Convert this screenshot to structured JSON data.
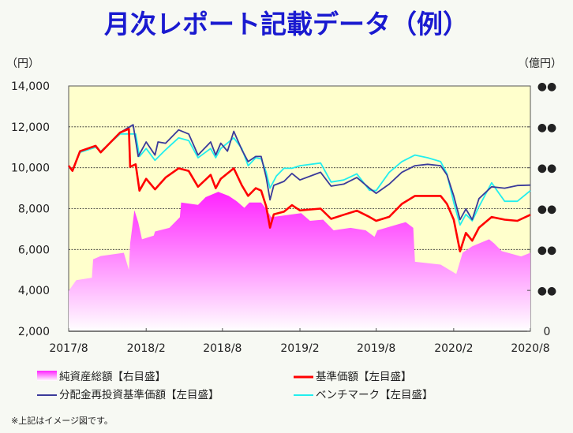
{
  "title": "月次レポート記載データ（例）",
  "footnote": "※上記はイメージ図です。",
  "colors": {
    "title": "#1a1ad0",
    "plot_bg": "#ffffcc",
    "net_assets_top": "#ff22ff",
    "nav": "#ff0000",
    "reinvested": "#3a3a9a",
    "benchmark": "#22eeee"
  },
  "chart_data": {
    "type": "line",
    "title": "月次レポート記載データ（例）",
    "left_axis": {
      "unit": "（円）",
      "range": [
        2000,
        14000
      ],
      "ticks": [
        "2,000",
        "4,000",
        "6,000",
        "8,000",
        "10,000",
        "12,000",
        "14,000"
      ],
      "tick_values": [
        2000,
        4000,
        6000,
        8000,
        10000,
        12000,
        14000
      ]
    },
    "right_axis": {
      "unit": "（億円）",
      "range": [
        0,
        6
      ],
      "ticks": [
        "0",
        "●●",
        "●●",
        "●●",
        "●●",
        "●●",
        "●●"
      ]
    },
    "x_axis": {
      "range": [
        "2017-08-01",
        "2020-08-01"
      ],
      "ticks": [
        "2017/8",
        "2018/2",
        "2018/8",
        "2019/2",
        "2019/8",
        "2020/2",
        "2020/8"
      ],
      "tick_dates": [
        "2017-08-01",
        "2018-02-01",
        "2018-08-01",
        "2019-02-01",
        "2019-08-01",
        "2020-02-01",
        "2020-08-01"
      ]
    },
    "grid": "horizontal dotted",
    "legend_position": "bottom",
    "series": [
      {
        "name": "純資産総額【右目盛】",
        "type": "area",
        "axis": "right",
        "color": "#ff22ff",
        "points": [
          [
            "2017-08-01",
            0.99
          ],
          [
            "2017-08-19",
            1.25
          ],
          [
            "2017-09-25",
            1.31
          ],
          [
            "2017-09-28",
            1.76
          ],
          [
            "2017-10-16",
            1.84
          ],
          [
            "2017-12-10",
            1.92
          ],
          [
            "2017-12-22",
            1.5
          ],
          [
            "2017-12-25",
            2.15
          ],
          [
            "2018-01-04",
            2.96
          ],
          [
            "2018-01-13",
            2.67
          ],
          [
            "2018-01-22",
            2.25
          ],
          [
            "2018-02-19",
            2.34
          ],
          [
            "2018-02-22",
            2.44
          ],
          [
            "2018-03-28",
            2.53
          ],
          [
            "2018-04-22",
            2.79
          ],
          [
            "2018-04-25",
            3.15
          ],
          [
            "2018-06-04",
            3.09
          ],
          [
            "2018-06-22",
            3.28
          ],
          [
            "2018-07-22",
            3.41
          ],
          [
            "2018-08-16",
            3.31
          ],
          [
            "2018-09-04",
            3.18
          ],
          [
            "2018-09-22",
            3.02
          ],
          [
            "2018-10-04",
            3.15
          ],
          [
            "2018-11-01",
            3.15
          ],
          [
            "2018-11-13",
            2.99
          ],
          [
            "2018-11-25",
            2.79
          ],
          [
            "2019-02-04",
            2.89
          ],
          [
            "2019-02-25",
            2.7
          ],
          [
            "2019-03-28",
            2.73
          ],
          [
            "2019-04-22",
            2.47
          ],
          [
            "2019-06-01",
            2.53
          ],
          [
            "2019-07-07",
            2.47
          ],
          [
            "2019-07-28",
            2.31
          ],
          [
            "2019-08-04",
            2.47
          ],
          [
            "2019-10-10",
            2.67
          ],
          [
            "2019-10-28",
            2.53
          ],
          [
            "2019-11-01",
            1.7
          ],
          [
            "2020-01-01",
            1.63
          ],
          [
            "2020-02-07",
            1.4
          ],
          [
            "2020-02-22",
            1.92
          ],
          [
            "2020-03-16",
            2.08
          ],
          [
            "2020-04-25",
            2.25
          ],
          [
            "2020-05-07",
            2.15
          ],
          [
            "2020-05-25",
            1.96
          ],
          [
            "2020-07-10",
            1.83
          ],
          [
            "2020-08-01",
            1.92
          ]
        ]
      },
      {
        "name": "基準価額【左目盛】",
        "type": "line",
        "axis": "left",
        "color": "#ff0000",
        "points": [
          [
            "2017-08-01",
            10100
          ],
          [
            "2017-08-10",
            9850
          ],
          [
            "2017-08-28",
            10810
          ],
          [
            "2017-10-04",
            11070
          ],
          [
            "2017-10-16",
            10750
          ],
          [
            "2017-12-01",
            11720
          ],
          [
            "2017-12-22",
            11900
          ],
          [
            "2017-12-25",
            10040
          ],
          [
            "2018-01-07",
            10170
          ],
          [
            "2018-01-16",
            8880
          ],
          [
            "2018-02-01",
            9460
          ],
          [
            "2018-02-22",
            8940
          ],
          [
            "2018-03-19",
            9520
          ],
          [
            "2018-04-19",
            9970
          ],
          [
            "2018-05-13",
            9840
          ],
          [
            "2018-06-04",
            9070
          ],
          [
            "2018-07-04",
            9650
          ],
          [
            "2018-07-16",
            9000
          ],
          [
            "2018-07-28",
            9460
          ],
          [
            "2018-08-28",
            9970
          ],
          [
            "2018-09-16",
            9140
          ],
          [
            "2018-10-01",
            8620
          ],
          [
            "2018-10-19",
            9000
          ],
          [
            "2018-11-01",
            8880
          ],
          [
            "2018-11-13",
            8100
          ],
          [
            "2018-11-22",
            7070
          ],
          [
            "2018-12-01",
            7720
          ],
          [
            "2018-12-25",
            7850
          ],
          [
            "2019-01-13",
            8170
          ],
          [
            "2019-02-01",
            7910
          ],
          [
            "2019-03-22",
            8000
          ],
          [
            "2019-04-16",
            7500
          ],
          [
            "2019-05-16",
            7700
          ],
          [
            "2019-06-16",
            7900
          ],
          [
            "2019-07-16",
            7590
          ],
          [
            "2019-08-01",
            7400
          ],
          [
            "2019-09-01",
            7600
          ],
          [
            "2019-10-01",
            8230
          ],
          [
            "2019-11-01",
            8620
          ],
          [
            "2019-12-01",
            8620
          ],
          [
            "2020-01-01",
            8620
          ],
          [
            "2020-01-16",
            8230
          ],
          [
            "2020-02-01",
            7460
          ],
          [
            "2020-02-16",
            5910
          ],
          [
            "2020-03-01",
            6810
          ],
          [
            "2020-03-16",
            6430
          ],
          [
            "2020-04-01",
            7070
          ],
          [
            "2020-05-01",
            7590
          ],
          [
            "2020-06-01",
            7460
          ],
          [
            "2020-07-01",
            7400
          ],
          [
            "2020-08-01",
            7700
          ]
        ]
      },
      {
        "name": "分配金再投資基準価額【左目盛】",
        "type": "line",
        "axis": "left",
        "color": "#3a3a9a",
        "points": [
          [
            "2017-08-01",
            10100
          ],
          [
            "2017-08-10",
            9850
          ],
          [
            "2017-08-28",
            10810
          ],
          [
            "2017-10-04",
            11070
          ],
          [
            "2017-10-16",
            10750
          ],
          [
            "2017-12-01",
            11720
          ],
          [
            "2018-01-01",
            12100
          ],
          [
            "2018-01-13",
            10550
          ],
          [
            "2018-02-01",
            11260
          ],
          [
            "2018-02-22",
            10620
          ],
          [
            "2018-03-01",
            11260
          ],
          [
            "2018-03-19",
            11200
          ],
          [
            "2018-04-19",
            11850
          ],
          [
            "2018-05-13",
            11650
          ],
          [
            "2018-06-04",
            10620
          ],
          [
            "2018-07-04",
            11260
          ],
          [
            "2018-07-16",
            10620
          ],
          [
            "2018-07-28",
            11200
          ],
          [
            "2018-08-13",
            10810
          ],
          [
            "2018-08-28",
            11780
          ],
          [
            "2018-09-16",
            10880
          ],
          [
            "2018-10-01",
            10300
          ],
          [
            "2018-10-19",
            10550
          ],
          [
            "2018-11-01",
            10550
          ],
          [
            "2018-11-13",
            9520
          ],
          [
            "2018-11-22",
            8430
          ],
          [
            "2018-12-01",
            9140
          ],
          [
            "2018-12-25",
            9330
          ],
          [
            "2019-01-13",
            9720
          ],
          [
            "2019-02-01",
            9400
          ],
          [
            "2019-03-22",
            9780
          ],
          [
            "2019-04-16",
            9100
          ],
          [
            "2019-05-16",
            9200
          ],
          [
            "2019-06-16",
            9520
          ],
          [
            "2019-07-16",
            9000
          ],
          [
            "2019-08-01",
            8750
          ],
          [
            "2019-09-01",
            9200
          ],
          [
            "2019-10-01",
            9780
          ],
          [
            "2019-11-01",
            10100
          ],
          [
            "2019-12-01",
            10170
          ],
          [
            "2020-01-01",
            10100
          ],
          [
            "2020-01-16",
            9650
          ],
          [
            "2020-02-01",
            8620
          ],
          [
            "2020-02-16",
            7460
          ],
          [
            "2020-03-01",
            7980
          ],
          [
            "2020-03-16",
            7460
          ],
          [
            "2020-04-01",
            8490
          ],
          [
            "2020-05-01",
            9070
          ],
          [
            "2020-06-01",
            9000
          ],
          [
            "2020-07-01",
            9130
          ],
          [
            "2020-08-01",
            9150
          ]
        ]
      },
      {
        "name": "ベンチマーク【左目盛】",
        "type": "line",
        "axis": "left",
        "color": "#22eeee",
        "points": [
          [
            "2017-08-01",
            10050
          ],
          [
            "2017-08-10",
            9900
          ],
          [
            "2017-08-28",
            10750
          ],
          [
            "2017-10-04",
            11000
          ],
          [
            "2017-10-16",
            10800
          ],
          [
            "2017-12-01",
            11650
          ],
          [
            "2018-01-07",
            11650
          ],
          [
            "2018-01-16",
            10550
          ],
          [
            "2018-02-01",
            10940
          ],
          [
            "2018-02-22",
            10360
          ],
          [
            "2018-03-19",
            10880
          ],
          [
            "2018-04-19",
            11460
          ],
          [
            "2018-05-13",
            11330
          ],
          [
            "2018-06-04",
            10490
          ],
          [
            "2018-07-04",
            10940
          ],
          [
            "2018-07-16",
            10490
          ],
          [
            "2018-07-28",
            10940
          ],
          [
            "2018-08-28",
            11460
          ],
          [
            "2018-09-16",
            10940
          ],
          [
            "2018-10-01",
            10100
          ],
          [
            "2018-10-19",
            10490
          ],
          [
            "2018-11-01",
            10430
          ],
          [
            "2018-11-13",
            9780
          ],
          [
            "2018-11-22",
            9000
          ],
          [
            "2018-12-07",
            9590
          ],
          [
            "2018-12-25",
            9970
          ],
          [
            "2019-01-13",
            9970
          ],
          [
            "2019-02-01",
            10100
          ],
          [
            "2019-03-22",
            10230
          ],
          [
            "2019-04-16",
            9300
          ],
          [
            "2019-05-16",
            9400
          ],
          [
            "2019-06-16",
            9700
          ],
          [
            "2019-07-16",
            8900
          ],
          [
            "2019-08-01",
            8880
          ],
          [
            "2019-09-01",
            9780
          ],
          [
            "2019-10-01",
            10300
          ],
          [
            "2019-11-01",
            10620
          ],
          [
            "2019-12-01",
            10490
          ],
          [
            "2020-01-01",
            10300
          ],
          [
            "2020-01-16",
            9700
          ],
          [
            "2020-02-01",
            8300
          ],
          [
            "2020-02-16",
            7200
          ],
          [
            "2020-03-01",
            7720
          ],
          [
            "2020-03-16",
            7400
          ],
          [
            "2020-04-01",
            8100
          ],
          [
            "2020-05-01",
            9260
          ],
          [
            "2020-06-01",
            8360
          ],
          [
            "2020-07-01",
            8360
          ],
          [
            "2020-08-01",
            8880
          ]
        ]
      }
    ]
  }
}
